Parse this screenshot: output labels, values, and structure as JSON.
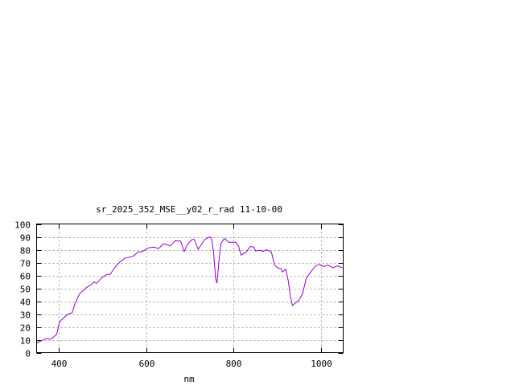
{
  "chart_data": {
    "type": "line",
    "title": "sr_2025_352_MSE__y02_r_rad 11-10-00",
    "xlabel": "nm",
    "ylabel": "",
    "xlim": [
      350,
      1050
    ],
    "ylim": [
      0,
      100
    ],
    "xticks": [
      400,
      600,
      800,
      1000
    ],
    "yticks": [
      0,
      10,
      20,
      30,
      40,
      50,
      60,
      70,
      80,
      90,
      100
    ],
    "grid": true,
    "line_color": "#9400d3",
    "series": [
      {
        "x": [
          350,
          371,
          384,
          396,
          402,
          408,
          420,
          431,
          438,
          448,
          463,
          475,
          481,
          487,
          498,
          510,
          518,
          527,
          536,
          551,
          570,
          582,
          591,
          606,
          618,
          628,
          640,
          655,
          667,
          679,
          687,
          694,
          705,
          710,
          719,
          734,
          744,
          749,
          754,
          759,
          762,
          767,
          771,
          779,
          789,
          805,
          811,
          817,
          829,
          838,
          846,
          850,
          862,
          866,
          874,
          886,
          893,
          899,
          908,
          911,
          919,
          925,
          929,
          934,
          948,
          957,
          966,
          975,
          987,
          996,
          1005,
          1015,
          1027,
          1036,
          1048
        ],
        "y": [
          7.5,
          10.8,
          10.6,
          14.4,
          23.7,
          25.8,
          29.6,
          31,
          38.3,
          45.6,
          50.4,
          52.9,
          55,
          53.8,
          58,
          60.8,
          60.8,
          65.4,
          69.2,
          73.3,
          74.8,
          78.3,
          78.5,
          81.5,
          82,
          80.8,
          84.6,
          83,
          87,
          86.6,
          78.5,
          84,
          88,
          88,
          80.4,
          88,
          89.8,
          89.4,
          78,
          57,
          54,
          73.8,
          85,
          88.8,
          85.8,
          85.8,
          83,
          75.8,
          78.3,
          82.5,
          82,
          79,
          79.6,
          78.5,
          80,
          78.3,
          68.5,
          66,
          65.4,
          62.7,
          64.8,
          55,
          44.6,
          36.7,
          40.4,
          45.6,
          58,
          62.3,
          67.5,
          68.5,
          66.9,
          68.1,
          66,
          67.5,
          66
        ]
      }
    ]
  }
}
